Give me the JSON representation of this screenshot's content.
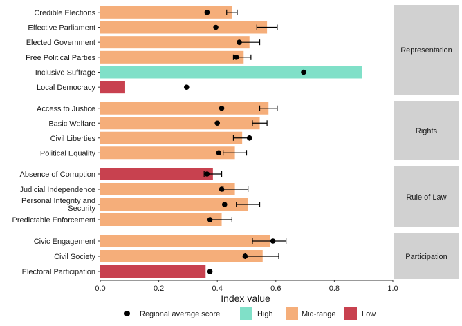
{
  "chart_data": {
    "type": "bar",
    "orientation": "horizontal",
    "xlabel": "Index value",
    "xlim": [
      0,
      1
    ],
    "xticks": [
      "0.0",
      "0.2",
      "0.4",
      "0.6",
      "0.8",
      "1.0"
    ],
    "grid": false,
    "legend_position": "bottom",
    "colors": {
      "High": "#80e0c8",
      "Mid-range": "#f5ae7a",
      "Low": "#c8414f",
      "strip": "#d1d1d1",
      "marker": "#000000"
    },
    "legend": {
      "marker_label": "Regional average score",
      "entries": [
        "High",
        "Mid-range",
        "Low"
      ]
    },
    "panels": [
      {
        "name": "Representation",
        "items": [
          {
            "label": "Credible Elections",
            "value": 0.45,
            "category": "Mid-range",
            "avg": 0.365,
            "err": [
              0.432,
              0.468
            ]
          },
          {
            "label": "Effective Parliament",
            "value": 0.57,
            "category": "Mid-range",
            "avg": 0.395,
            "err": [
              0.535,
              0.605
            ]
          },
          {
            "label": "Elected Government",
            "value": 0.51,
            "category": "Mid-range",
            "avg": 0.475,
            "err": [
              0.475,
              0.545
            ]
          },
          {
            "label": "Free Political Parties",
            "value": 0.49,
            "category": "Mid-range",
            "avg": 0.465,
            "err": [
              0.455,
              0.515
            ]
          },
          {
            "label": "Inclusive Suffrage",
            "value": 0.895,
            "category": "High",
            "avg": 0.695,
            "err": null
          },
          {
            "label": "Local Democracy",
            "value": 0.085,
            "category": "Low",
            "avg": 0.295,
            "err": null
          }
        ]
      },
      {
        "name": "Rights",
        "items": [
          {
            "label": "Access to Justice",
            "value": 0.575,
            "category": "Mid-range",
            "avg": 0.415,
            "err": [
              0.545,
              0.605
            ]
          },
          {
            "label": "Basic Welfare",
            "value": 0.545,
            "category": "Mid-range",
            "avg": 0.4,
            "err": [
              0.52,
              0.57
            ]
          },
          {
            "label": "Civil Liberties",
            "value": 0.485,
            "category": "Mid-range",
            "avg": 0.51,
            "err": [
              0.455,
              0.51
            ]
          },
          {
            "label": "Political Equality",
            "value": 0.46,
            "category": "Mid-range",
            "avg": 0.405,
            "err": [
              0.42,
              0.5
            ]
          }
        ]
      },
      {
        "name": "Rule of Law",
        "items": [
          {
            "label": "Absence of Corruption",
            "value": 0.385,
            "category": "Low",
            "avg": 0.365,
            "err": [
              0.355,
              0.415
            ]
          },
          {
            "label": "Judicial Independence",
            "value": 0.46,
            "category": "Mid-range",
            "avg": 0.415,
            "err": [
              0.42,
              0.505
            ]
          },
          {
            "label": "Personal Integrity and Security",
            "value": 0.505,
            "category": "Mid-range",
            "avg": 0.425,
            "err": [
              0.465,
              0.545
            ]
          },
          {
            "label": "Predictable Enforcement",
            "value": 0.415,
            "category": "Mid-range",
            "avg": 0.375,
            "err": [
              0.375,
              0.45
            ]
          }
        ]
      },
      {
        "name": "Participation",
        "items": [
          {
            "label": "Civic Engagement",
            "value": 0.58,
            "category": "Mid-range",
            "avg": 0.59,
            "err": [
              0.52,
              0.635
            ]
          },
          {
            "label": "Civil Society",
            "value": 0.555,
            "category": "Mid-range",
            "avg": 0.495,
            "err": [
              0.495,
              0.61
            ]
          },
          {
            "label": "Electoral Participation",
            "value": 0.36,
            "category": "Low",
            "avg": 0.375,
            "err": null
          }
        ]
      }
    ]
  }
}
